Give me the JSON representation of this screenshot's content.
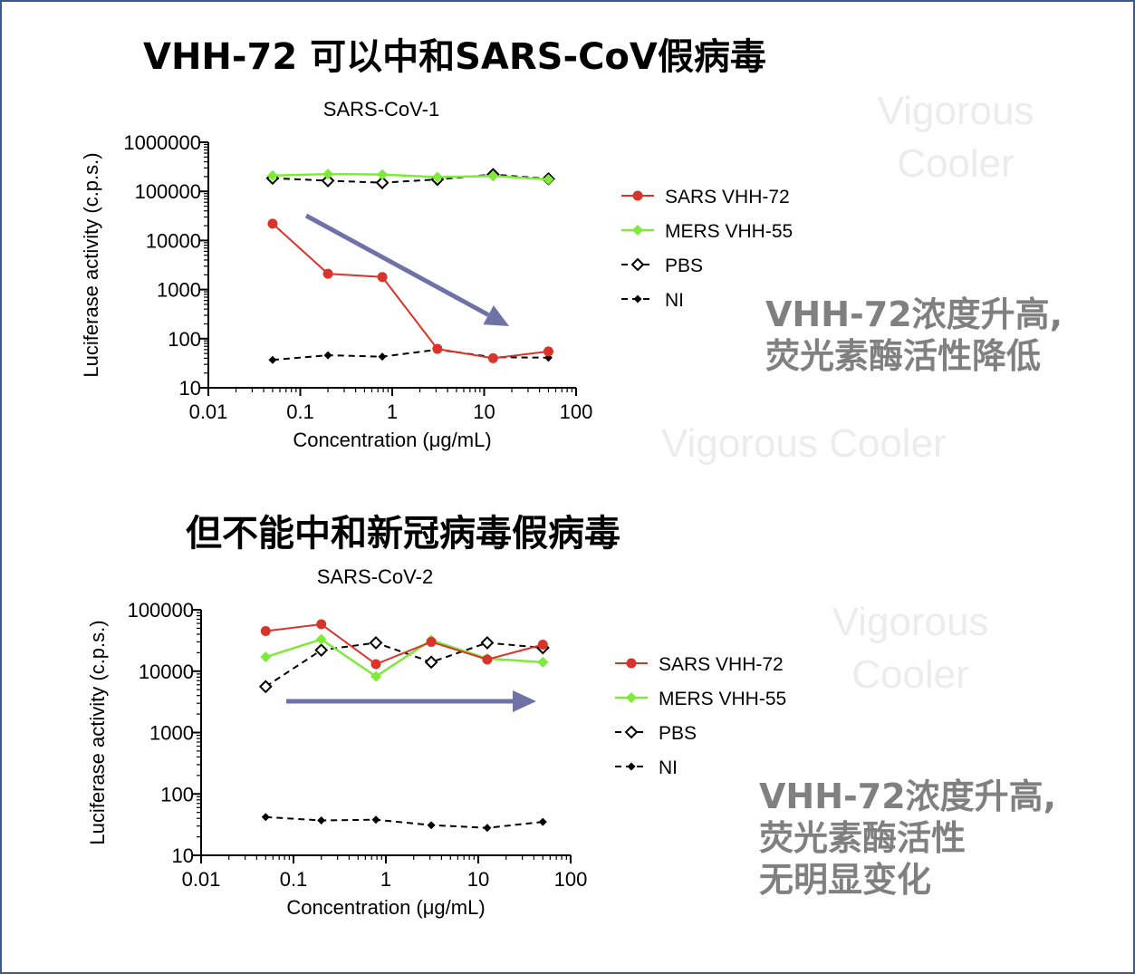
{
  "heading_top": "VHH-72 可以中和SARS-CoV假病毒",
  "heading_bottom": "但不能中和新冠病毒假病毒",
  "annotation_top": [
    "VHH-72浓度升高,",
    "荧光素酶活性降低"
  ],
  "annotation_bottom": [
    "VHH-72浓度升高,",
    "荧光素酶活性",
    "无明显变化"
  ],
  "watermark": "Vigorous Cooler",
  "watermark_lines": [
    "Vigorous",
    "Cooler"
  ],
  "colors": {
    "sars_vhh72": "#d9342b",
    "mers_vhh55": "#7fea3a",
    "pbs": "#000000",
    "ni": "#000000",
    "arrow": "#6f72a6",
    "frame": "#3a5a8a"
  },
  "chart_data": [
    {
      "type": "line",
      "title": "SARS-CoV-1",
      "xlabel": "Concentration (μg/mL)",
      "ylabel": "Luciferase activity (c.p.s.)",
      "xscale": "log",
      "yscale": "log",
      "xlim": [
        0.01,
        100
      ],
      "ylim": [
        10,
        1000000
      ],
      "xticks": [
        "0.01",
        "0.1",
        "1",
        "10",
        "100"
      ],
      "yticks": [
        "10",
        "100",
        "1000",
        "10000",
        "100000",
        "1000000"
      ],
      "x": [
        0.05,
        0.2,
        0.78,
        3.1,
        12.5,
        50
      ],
      "legend_position": "right",
      "trend_arrow": "down",
      "series": [
        {
          "name": "SARS VHH-72",
          "values": [
            22000,
            2100,
            1800,
            62,
            40,
            55
          ]
        },
        {
          "name": "MERS VHH-55",
          "values": [
            210000,
            225000,
            220000,
            195000,
            205000,
            175000
          ]
        },
        {
          "name": "PBS",
          "values": [
            185000,
            165000,
            150000,
            175000,
            220000,
            180000
          ]
        },
        {
          "name": "NI",
          "values": [
            37,
            46,
            43,
            60,
            42,
            41
          ]
        }
      ]
    },
    {
      "type": "line",
      "title": "SARS-CoV-2",
      "xlabel": "Concentration (μg/mL)",
      "ylabel": "Luciferase activity (c.p.s.)",
      "xscale": "log",
      "yscale": "log",
      "xlim": [
        0.01,
        100
      ],
      "ylim": [
        10,
        100000
      ],
      "xticks": [
        "0.01",
        "0.1",
        "1",
        "10",
        "100"
      ],
      "yticks": [
        "10",
        "100",
        "1000",
        "10000",
        "100000"
      ],
      "x": [
        0.05,
        0.2,
        0.78,
        3.1,
        12.5,
        50
      ],
      "legend_position": "right",
      "trend_arrow": "flat",
      "series": [
        {
          "name": "SARS VHH-72",
          "values": [
            45000,
            58000,
            13000,
            30000,
            15500,
            27000
          ]
        },
        {
          "name": "MERS VHH-55",
          "values": [
            17000,
            33000,
            8200,
            32000,
            16000,
            14000
          ]
        },
        {
          "name": "PBS",
          "values": [
            5600,
            22000,
            29000,
            14000,
            29000,
            24000
          ]
        },
        {
          "name": "NI",
          "values": [
            42,
            37,
            38,
            31,
            28,
            35
          ]
        }
      ]
    }
  ]
}
